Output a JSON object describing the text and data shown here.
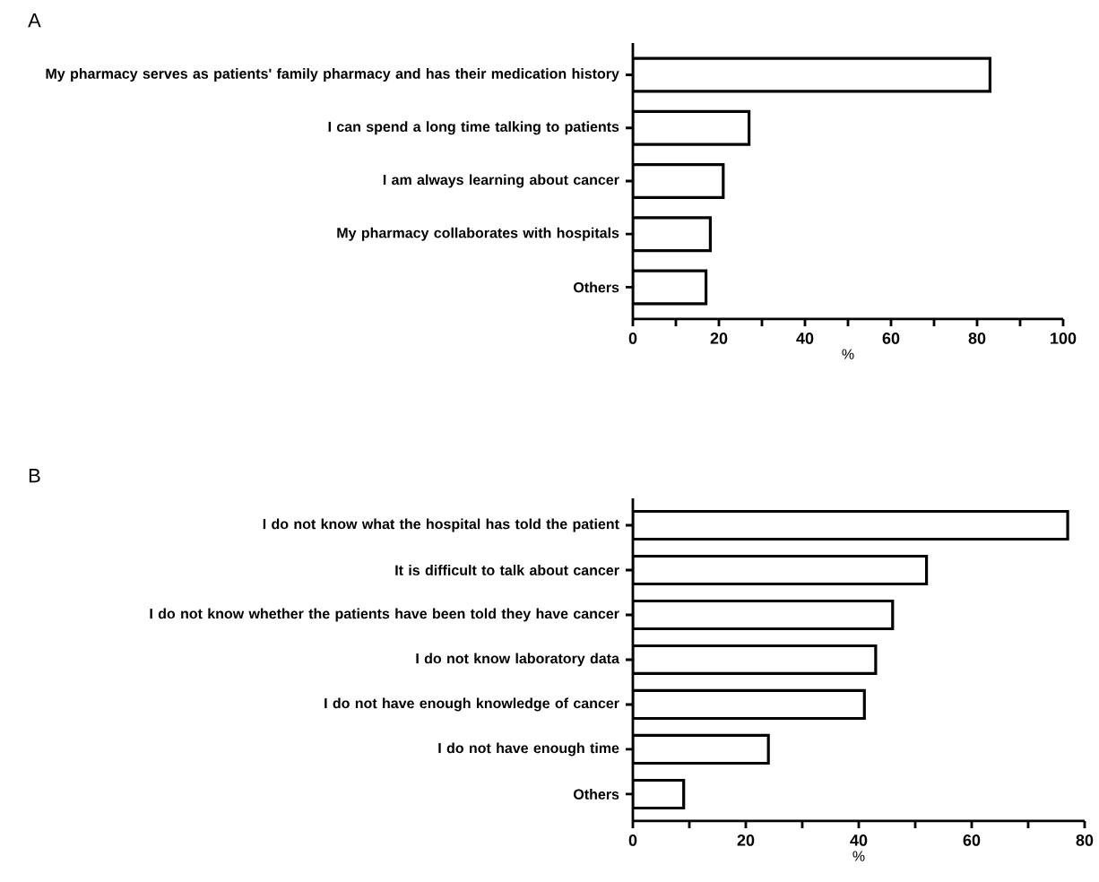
{
  "chart_data": [
    {
      "type": "bar",
      "orientation": "horizontal",
      "title": "A",
      "xlabel": "%",
      "categories": [
        "My pharmacy serves as patients' family pharmacy and has their medication history",
        "I can spend a long time talking to patients",
        "I am always learning about cancer",
        "My pharmacy collaborates with hospitals",
        "Others"
      ],
      "values": [
        83,
        27,
        21,
        18,
        17
      ],
      "color": "#ffffff",
      "xlim": [
        0,
        100
      ],
      "xticks": [
        0,
        {
          "value": 10,
          "label": null
        },
        20,
        {
          "value": 30,
          "label": null
        },
        40,
        {
          "value": 50,
          "label": null
        },
        60,
        {
          "value": 70,
          "label": null
        },
        80,
        {
          "value": 90,
          "label": null
        },
        100
      ]
    },
    {
      "type": "bar",
      "orientation": "horizontal",
      "title": "B",
      "xlabel": "%",
      "categories": [
        "I do not know what the hospital has told the patient",
        "It is difficult to talk about cancer",
        "I do not know whether the patients have been told they have cancer",
        "I do not know laboratory data",
        "I do not have enough knowledge of cancer",
        "I do not have enough time",
        "Others"
      ],
      "values": [
        77,
        52,
        46,
        43,
        41,
        24,
        9
      ],
      "color": "#ffffff",
      "xlim": [
        0,
        80
      ],
      "xticks": [
        0,
        {
          "value": 10,
          "label": null
        },
        20,
        {
          "value": 30,
          "label": null
        },
        40,
        {
          "value": 50,
          "label": null
        },
        60,
        {
          "value": 70,
          "label": null
        },
        80
      ]
    }
  ]
}
